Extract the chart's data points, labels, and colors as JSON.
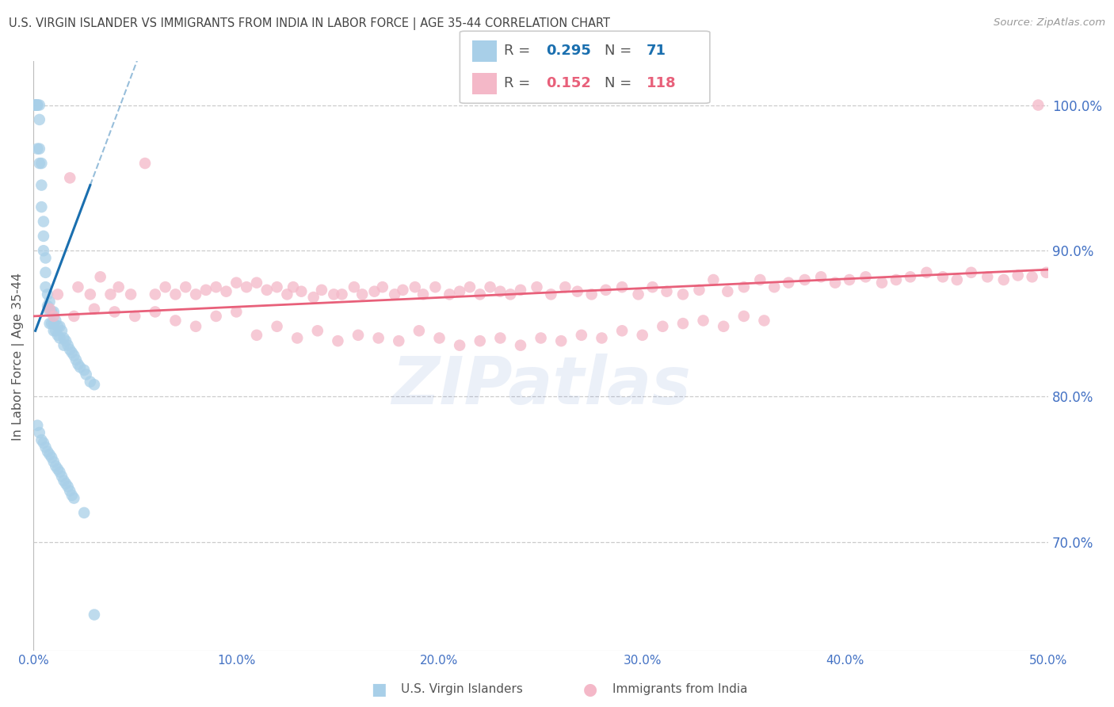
{
  "title": "U.S. VIRGIN ISLANDER VS IMMIGRANTS FROM INDIA IN LABOR FORCE | AGE 35-44 CORRELATION CHART",
  "source": "Source: ZipAtlas.com",
  "ylabel": "In Labor Force | Age 35-44",
  "xlim": [
    0.0,
    0.5
  ],
  "ylim": [
    0.625,
    1.03
  ],
  "yticks": [
    0.7,
    0.8,
    0.9,
    1.0
  ],
  "ytick_labels": [
    "70.0%",
    "80.0%",
    "90.0%",
    "100.0%"
  ],
  "xticks": [
    0.0,
    0.1,
    0.2,
    0.3,
    0.4,
    0.5
  ],
  "xtick_labels": [
    "0.0%",
    "10.0%",
    "20.0%",
    "30.0%",
    "40.0%",
    "50.0%"
  ],
  "blue_R": 0.295,
  "blue_N": 71,
  "pink_R": 0.152,
  "pink_N": 118,
  "blue_color": "#a8cfe8",
  "pink_color": "#f4b8c8",
  "blue_line_color": "#1a6faf",
  "pink_line_color": "#e8607a",
  "axis_color": "#4472C4",
  "blue_scatter_x": [
    0.001,
    0.001,
    0.001,
    0.002,
    0.002,
    0.002,
    0.003,
    0.003,
    0.003,
    0.003,
    0.004,
    0.004,
    0.004,
    0.005,
    0.005,
    0.005,
    0.006,
    0.006,
    0.006,
    0.007,
    0.007,
    0.008,
    0.008,
    0.008,
    0.009,
    0.009,
    0.01,
    0.01,
    0.01,
    0.011,
    0.011,
    0.012,
    0.012,
    0.013,
    0.013,
    0.014,
    0.015,
    0.015,
    0.016,
    0.017,
    0.018,
    0.019,
    0.02,
    0.021,
    0.022,
    0.023,
    0.025,
    0.026,
    0.028,
    0.03,
    0.002,
    0.003,
    0.004,
    0.005,
    0.006,
    0.007,
    0.008,
    0.009,
    0.01,
    0.011,
    0.012,
    0.013,
    0.014,
    0.015,
    0.016,
    0.017,
    0.018,
    0.019,
    0.02,
    0.025,
    0.03
  ],
  "blue_scatter_y": [
    1.0,
    1.0,
    1.0,
    1.0,
    1.0,
    0.97,
    1.0,
    0.99,
    0.97,
    0.96,
    0.96,
    0.945,
    0.93,
    0.92,
    0.91,
    0.9,
    0.895,
    0.885,
    0.875,
    0.87,
    0.862,
    0.865,
    0.858,
    0.85,
    0.858,
    0.85,
    0.858,
    0.85,
    0.845,
    0.852,
    0.845,
    0.848,
    0.842,
    0.848,
    0.84,
    0.845,
    0.84,
    0.835,
    0.838,
    0.835,
    0.832,
    0.83,
    0.828,
    0.825,
    0.822,
    0.82,
    0.818,
    0.815,
    0.81,
    0.808,
    0.78,
    0.775,
    0.77,
    0.768,
    0.765,
    0.762,
    0.76,
    0.758,
    0.755,
    0.752,
    0.75,
    0.748,
    0.745,
    0.742,
    0.74,
    0.738,
    0.735,
    0.732,
    0.73,
    0.72,
    0.65
  ],
  "pink_scatter_x": [
    0.008,
    0.012,
    0.018,
    0.022,
    0.028,
    0.033,
    0.038,
    0.042,
    0.048,
    0.055,
    0.06,
    0.065,
    0.07,
    0.075,
    0.08,
    0.085,
    0.09,
    0.095,
    0.1,
    0.105,
    0.11,
    0.115,
    0.12,
    0.125,
    0.128,
    0.132,
    0.138,
    0.142,
    0.148,
    0.152,
    0.158,
    0.162,
    0.168,
    0.172,
    0.178,
    0.182,
    0.188,
    0.192,
    0.198,
    0.205,
    0.21,
    0.215,
    0.22,
    0.225,
    0.23,
    0.235,
    0.24,
    0.248,
    0.255,
    0.262,
    0.268,
    0.275,
    0.282,
    0.29,
    0.298,
    0.305,
    0.312,
    0.32,
    0.328,
    0.335,
    0.342,
    0.35,
    0.358,
    0.365,
    0.372,
    0.38,
    0.388,
    0.395,
    0.402,
    0.41,
    0.418,
    0.425,
    0.432,
    0.44,
    0.448,
    0.455,
    0.462,
    0.47,
    0.478,
    0.485,
    0.492,
    0.499,
    0.01,
    0.02,
    0.03,
    0.04,
    0.05,
    0.06,
    0.07,
    0.08,
    0.09,
    0.1,
    0.11,
    0.12,
    0.13,
    0.14,
    0.15,
    0.16,
    0.17,
    0.18,
    0.19,
    0.2,
    0.21,
    0.22,
    0.23,
    0.24,
    0.25,
    0.26,
    0.27,
    0.28,
    0.29,
    0.3,
    0.31,
    0.32,
    0.33,
    0.34,
    0.35,
    0.36,
    0.495
  ],
  "pink_scatter_y": [
    0.86,
    0.87,
    0.95,
    0.875,
    0.87,
    0.882,
    0.87,
    0.875,
    0.87,
    0.96,
    0.87,
    0.875,
    0.87,
    0.875,
    0.87,
    0.873,
    0.875,
    0.872,
    0.878,
    0.875,
    0.878,
    0.873,
    0.875,
    0.87,
    0.875,
    0.872,
    0.868,
    0.873,
    0.87,
    0.87,
    0.875,
    0.87,
    0.872,
    0.875,
    0.87,
    0.873,
    0.875,
    0.87,
    0.875,
    0.87,
    0.872,
    0.875,
    0.87,
    0.875,
    0.872,
    0.87,
    0.873,
    0.875,
    0.87,
    0.875,
    0.872,
    0.87,
    0.873,
    0.875,
    0.87,
    0.875,
    0.872,
    0.87,
    0.873,
    0.88,
    0.872,
    0.875,
    0.88,
    0.875,
    0.878,
    0.88,
    0.882,
    0.878,
    0.88,
    0.882,
    0.878,
    0.88,
    0.882,
    0.885,
    0.882,
    0.88,
    0.885,
    0.882,
    0.88,
    0.883,
    0.882,
    0.885,
    0.855,
    0.855,
    0.86,
    0.858,
    0.855,
    0.858,
    0.852,
    0.848,
    0.855,
    0.858,
    0.842,
    0.848,
    0.84,
    0.845,
    0.838,
    0.842,
    0.84,
    0.838,
    0.845,
    0.84,
    0.835,
    0.838,
    0.84,
    0.835,
    0.84,
    0.838,
    0.842,
    0.84,
    0.845,
    0.842,
    0.848,
    0.85,
    0.852,
    0.848,
    0.855,
    0.852,
    1.0
  ]
}
